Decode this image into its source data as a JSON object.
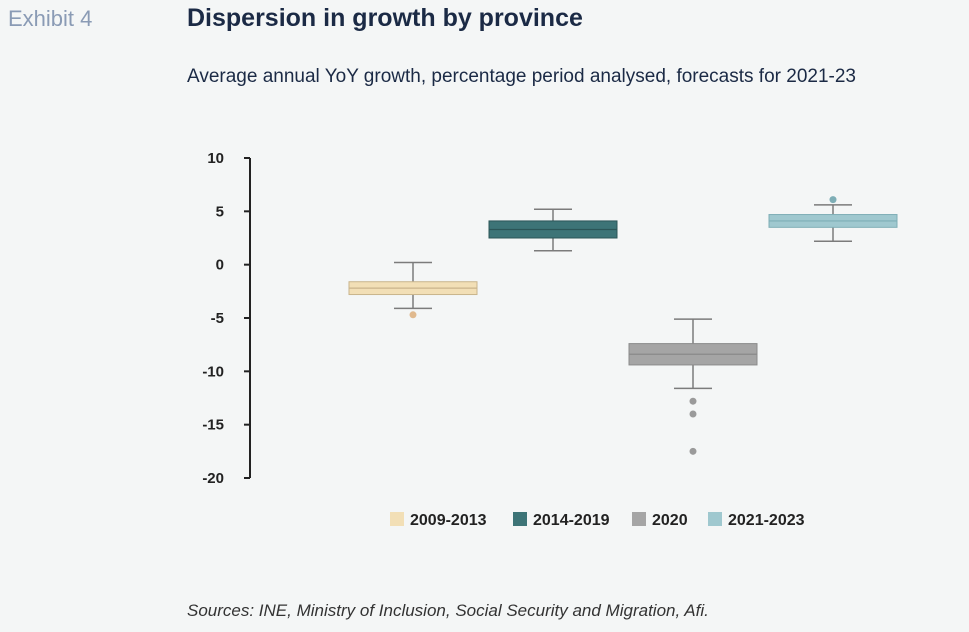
{
  "header": {
    "exhibit": "Exhibit 4",
    "title": "Dispersion in growth by province",
    "subtitle": "Average annual YoY growth, percentage period analysed, forecasts for 2021-23"
  },
  "footer": {
    "source": "Sources: INE, Ministry of Inclusion, Social Security and Migration, Afi."
  },
  "chart_data": {
    "type": "boxplot",
    "title": "Dispersion in growth by province",
    "subtitle": "Average annual YoY growth, percentage period analysed, forecasts for 2021-23",
    "ylim": [
      -20,
      10
    ],
    "yticks": [
      10,
      5,
      0,
      -5,
      -10,
      -15,
      -20
    ],
    "grid": false,
    "legend_position": "bottom",
    "series": [
      {
        "name": "2009-2013",
        "color": "#f2dfb6",
        "whisker_low": -4.1,
        "q1": -2.8,
        "median": -2.2,
        "q3": -1.6,
        "whisker_high": 0.2,
        "outliers": [
          -4.7
        ]
      },
      {
        "name": "2014-2019",
        "color": "#3d7477",
        "whisker_low": 1.3,
        "q1": 2.5,
        "median": 3.3,
        "q3": 4.1,
        "whisker_high": 5.2,
        "outliers": []
      },
      {
        "name": "2020",
        "color": "#a5a5a5",
        "whisker_low": -11.6,
        "q1": -9.4,
        "median": -8.4,
        "q3": -7.4,
        "whisker_high": -5.1,
        "outliers": [
          -12.8,
          -14.0,
          -17.5
        ]
      },
      {
        "name": "2021-2023",
        "color": "#9fc8cf",
        "whisker_low": 2.2,
        "q1": 3.5,
        "median": 4.1,
        "q3": 4.7,
        "whisker_high": 5.6,
        "outliers": [
          6.1
        ]
      }
    ]
  }
}
